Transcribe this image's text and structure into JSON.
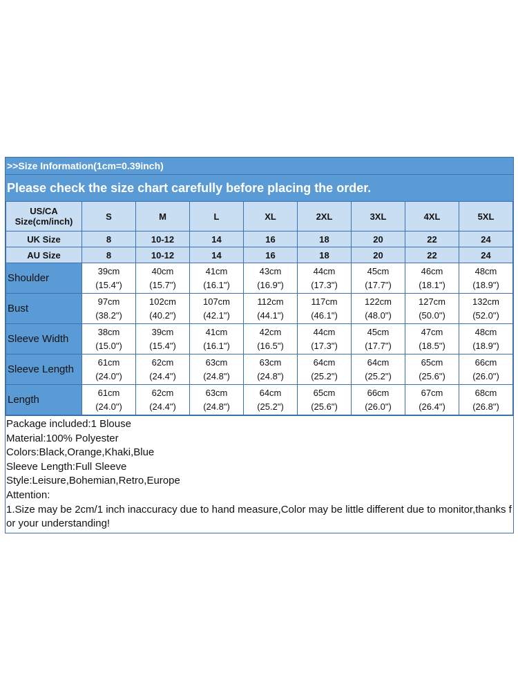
{
  "header": {
    "title": ">>Size Information(1cm=0.39inch)",
    "subtitle": "Please check the size chart carefully before placing the order."
  },
  "table": {
    "size_label": "US/CA Size(cm/inch)",
    "sizes": [
      "S",
      "M",
      "L",
      "XL",
      "2XL",
      "3XL",
      "4XL",
      "5XL"
    ],
    "uk_label": "UK Size",
    "uk": [
      "8",
      "10-12",
      "14",
      "16",
      "18",
      "20",
      "22",
      "24"
    ],
    "au_label": "AU Size",
    "au": [
      "8",
      "10-12",
      "14",
      "16",
      "18",
      "20",
      "22",
      "24"
    ],
    "rows": [
      {
        "label": "Shoulder",
        "cm": [
          "39cm",
          "40cm",
          "41cm",
          "43cm",
          "44cm",
          "45cm",
          "46cm",
          "48cm"
        ],
        "inch": [
          "(15.4\")",
          "(15.7\")",
          "(16.1\")",
          "(16.9\")",
          "(17.3\")",
          "(17.7\")",
          "(18.1\")",
          "(18.9\")"
        ]
      },
      {
        "label": "Bust",
        "cm": [
          "97cm",
          "102cm",
          "107cm",
          "112cm",
          "117cm",
          "122cm",
          "127cm",
          "132cm"
        ],
        "inch": [
          "(38.2\")",
          "(40.2\")",
          "(42.1\")",
          "(44.1\")",
          "(46.1\")",
          "(48.0\")",
          "(50.0\")",
          "(52.0\")"
        ]
      },
      {
        "label": "Sleeve Width",
        "cm": [
          "38cm",
          "39cm",
          "41cm",
          "42cm",
          "44cm",
          "45cm",
          "47cm",
          "48cm"
        ],
        "inch": [
          "(15.0\")",
          "(15.4\")",
          "(16.1\")",
          "(16.5\")",
          "(17.3\")",
          "(17.7\")",
          "(18.5\")",
          "(18.9\")"
        ]
      },
      {
        "label": "Sleeve Length",
        "cm": [
          "61cm",
          "62cm",
          "63cm",
          "63cm",
          "64cm",
          "64cm",
          "65cm",
          "66cm"
        ],
        "inch": [
          "(24.0\")",
          "(24.4\")",
          "(24.8\")",
          "(24.8\")",
          "(25.2\")",
          "(25.2\")",
          "(25.6\")",
          "(26.0\")"
        ]
      },
      {
        "label": "Length",
        "cm": [
          "61cm",
          "62cm",
          "63cm",
          "64cm",
          "65cm",
          "66cm",
          "67cm",
          "68cm"
        ],
        "inch": [
          "(24.0\")",
          "(24.4\")",
          "(24.8\")",
          "(25.2\")",
          "(25.6\")",
          "(26.0\")",
          "(26.4\")",
          "(26.8\")"
        ]
      }
    ]
  },
  "notes": [
    "Package included:1 Blouse",
    "Material:100% Polyester",
    "Colors:Black,Orange,Khaki,Blue",
    "Sleeve Length:Full Sleeve",
    "Style:Leisure,Bohemian,Retro,Europe",
    "Attention:",
    "1.Size may be 2cm/1 inch inaccuracy due to hand measure,Color may be little different due to monitor,thanks for your understanding!"
  ],
  "colors": {
    "header_bg": "#5b9bd5",
    "header_row_bg": "#c9def2",
    "border": "#3a6fb0"
  }
}
